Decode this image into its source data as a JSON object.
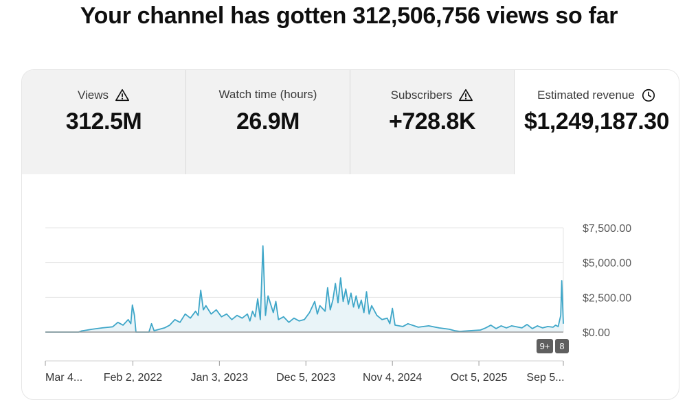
{
  "headline": "Your channel has gotten 312,506,756 views so far",
  "tabs": [
    {
      "label": "Views",
      "value": "312.5M",
      "icon": "warning-icon"
    },
    {
      "label": "Watch time (hours)",
      "value": "26.9M",
      "icon": ""
    },
    {
      "label": "Subscribers",
      "value": "+728.8K",
      "icon": "warning-icon"
    },
    {
      "label": "Estimated revenue",
      "value": "$1,249,187.30",
      "icon": "clock-icon"
    }
  ],
  "badges": [
    "9+",
    "8"
  ],
  "colors": {
    "line": "#3ea6c8",
    "fill": "#e9f4f8",
    "grid": "#e4e4e4",
    "badge": "#5f5f5f"
  },
  "chart_data": {
    "type": "area",
    "yunit": "$",
    "ylim": [
      0,
      7500
    ],
    "yticks": [
      0,
      2500,
      5000,
      7500
    ],
    "ytick_labels": [
      "$0.00",
      "$2,500.00",
      "$5,000.00",
      "$7,500.00"
    ],
    "xtick_labels": [
      "Mar 4...",
      "Feb 2, 2022",
      "Jan 3, 2023",
      "Dec 5, 2023",
      "Nov 4, 2024",
      "Oct 5, 2025",
      "Sep 5..."
    ],
    "xtick_positions": [
      0,
      0.169,
      0.336,
      0.503,
      0.67,
      0.837,
      1.0
    ],
    "grid": true,
    "points": [
      [
        0.0,
        0
      ],
      [
        0.064,
        0
      ],
      [
        0.07,
        80
      ],
      [
        0.09,
        200
      ],
      [
        0.11,
        300
      ],
      [
        0.13,
        380
      ],
      [
        0.14,
        700
      ],
      [
        0.15,
        500
      ],
      [
        0.16,
        900
      ],
      [
        0.165,
        600
      ],
      [
        0.168,
        1950
      ],
      [
        0.172,
        1200
      ],
      [
        0.175,
        0
      ],
      [
        0.2,
        0
      ],
      [
        0.205,
        600
      ],
      [
        0.21,
        100
      ],
      [
        0.23,
        300
      ],
      [
        0.24,
        500
      ],
      [
        0.25,
        900
      ],
      [
        0.26,
        700
      ],
      [
        0.27,
        1300
      ],
      [
        0.28,
        1000
      ],
      [
        0.29,
        1500
      ],
      [
        0.295,
        1200
      ],
      [
        0.3,
        3000
      ],
      [
        0.305,
        1600
      ],
      [
        0.31,
        1900
      ],
      [
        0.32,
        1300
      ],
      [
        0.33,
        1600
      ],
      [
        0.34,
        1100
      ],
      [
        0.35,
        1300
      ],
      [
        0.36,
        900
      ],
      [
        0.37,
        1200
      ],
      [
        0.38,
        1000
      ],
      [
        0.39,
        1300
      ],
      [
        0.395,
        800
      ],
      [
        0.4,
        1500
      ],
      [
        0.405,
        1100
      ],
      [
        0.41,
        2400
      ],
      [
        0.415,
        900
      ],
      [
        0.42,
        6200
      ],
      [
        0.425,
        1200
      ],
      [
        0.43,
        2600
      ],
      [
        0.44,
        1400
      ],
      [
        0.445,
        2200
      ],
      [
        0.45,
        900
      ],
      [
        0.46,
        1100
      ],
      [
        0.47,
        700
      ],
      [
        0.48,
        1000
      ],
      [
        0.49,
        800
      ],
      [
        0.5,
        900
      ],
      [
        0.51,
        1400
      ],
      [
        0.52,
        2200
      ],
      [
        0.525,
        1300
      ],
      [
        0.53,
        1900
      ],
      [
        0.54,
        1500
      ],
      [
        0.545,
        3200
      ],
      [
        0.55,
        1600
      ],
      [
        0.555,
        2300
      ],
      [
        0.56,
        3500
      ],
      [
        0.565,
        2100
      ],
      [
        0.57,
        3900
      ],
      [
        0.575,
        2200
      ],
      [
        0.58,
        3100
      ],
      [
        0.585,
        2000
      ],
      [
        0.59,
        2800
      ],
      [
        0.595,
        1800
      ],
      [
        0.6,
        2600
      ],
      [
        0.605,
        1700
      ],
      [
        0.61,
        2300
      ],
      [
        0.615,
        1400
      ],
      [
        0.62,
        2900
      ],
      [
        0.625,
        1300
      ],
      [
        0.63,
        1900
      ],
      [
        0.64,
        1200
      ],
      [
        0.65,
        900
      ],
      [
        0.66,
        1000
      ],
      [
        0.665,
        600
      ],
      [
        0.67,
        1700
      ],
      [
        0.675,
        500
      ],
      [
        0.69,
        400
      ],
      [
        0.7,
        600
      ],
      [
        0.72,
        350
      ],
      [
        0.74,
        450
      ],
      [
        0.76,
        300
      ],
      [
        0.78,
        200
      ],
      [
        0.79,
        100
      ],
      [
        0.8,
        50
      ],
      [
        0.82,
        100
      ],
      [
        0.84,
        150
      ],
      [
        0.85,
        300
      ],
      [
        0.86,
        500
      ],
      [
        0.87,
        250
      ],
      [
        0.88,
        450
      ],
      [
        0.89,
        300
      ],
      [
        0.9,
        450
      ],
      [
        0.92,
        300
      ],
      [
        0.93,
        550
      ],
      [
        0.94,
        250
      ],
      [
        0.95,
        450
      ],
      [
        0.96,
        300
      ],
      [
        0.97,
        400
      ],
      [
        0.98,
        350
      ],
      [
        0.985,
        500
      ],
      [
        0.99,
        400
      ],
      [
        0.995,
        1200
      ],
      [
        0.997,
        3700
      ],
      [
        1.0,
        600
      ]
    ]
  }
}
